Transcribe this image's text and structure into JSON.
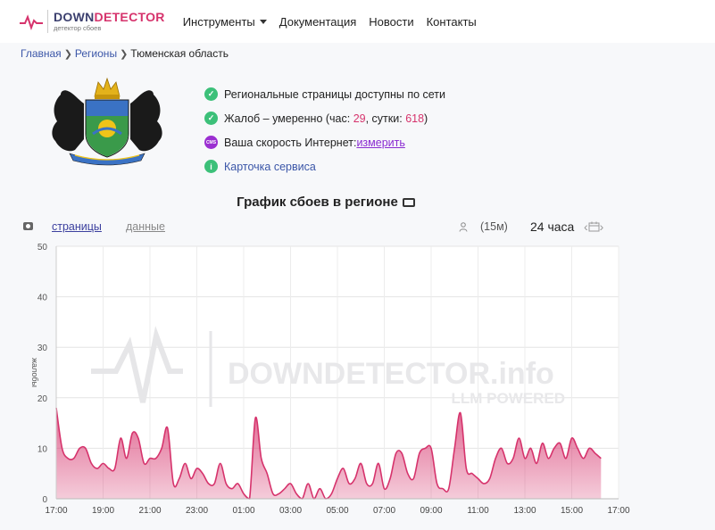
{
  "brand": {
    "name_dark": "DOWN",
    "name_mid": "DETECTO",
    "name_end": "R",
    "subtitle": "детектор сбоев"
  },
  "nav": {
    "tools": "Инструменты",
    "docs": "Документация",
    "news": "Новости",
    "contacts": "Контакты"
  },
  "breadcrumb": {
    "home": "Главная",
    "regions": "Регионы",
    "current": "Тюменская область"
  },
  "status": {
    "line1": "Региональные страницы доступны по сети",
    "line2_prefix": "Жалоб – умеренно (час: ",
    "hour_count": "29",
    "line2_mid": ", сутки: ",
    "day_count": "618",
    "line2_suffix": ")",
    "line3_prefix": "Ваша скорость Интернет: ",
    "line3_link": "измерить",
    "line4": "Карточка сервиса",
    "badge_text": "CMS"
  },
  "chart_section": {
    "title": "График сбоев в регионе",
    "tab_pages": "страницы",
    "tab_data": "данные",
    "interval": "(15м)",
    "period": "24 часа"
  },
  "chart_data": {
    "type": "area",
    "ylabel": "жалобы",
    "ylim": [
      0,
      50
    ],
    "yticks": [
      0,
      10,
      20,
      30,
      40,
      50
    ],
    "xticks": [
      "17:00",
      "19:00",
      "21:00",
      "23:00",
      "01:00",
      "03:00",
      "05:00",
      "07:00",
      "09:00",
      "11:00",
      "13:00",
      "15:00",
      "17:00"
    ],
    "watermark": "DOWNDETECTOR.info",
    "watermark_sub": "LLM POWERED",
    "color": "#d6336c",
    "x_hours": [
      0,
      0.25,
      0.5,
      0.75,
      1,
      1.25,
      1.5,
      1.75,
      2,
      2.25,
      2.5,
      2.75,
      3,
      3.25,
      3.5,
      3.75,
      4,
      4.25,
      4.5,
      4.75,
      5,
      5.25,
      5.5,
      5.75,
      6,
      6.25,
      6.5,
      6.75,
      7,
      7.25,
      7.5,
      7.75,
      8,
      8.25,
      8.5,
      8.75,
      9,
      9.25,
      9.5,
      9.75,
      10,
      10.25,
      10.5,
      10.75,
      11,
      11.25,
      11.5,
      11.75,
      12,
      12.25,
      12.5,
      12.75,
      13,
      13.25,
      13.5,
      13.75,
      14,
      14.25,
      14.5,
      14.75,
      15,
      15.25,
      15.5,
      15.75,
      16,
      16.25,
      16.5,
      16.75,
      17,
      17.25,
      17.5,
      17.75,
      18,
      18.25,
      18.5,
      18.75,
      19,
      19.25,
      19.5,
      19.75,
      20,
      20.25,
      20.5,
      20.75,
      21,
      21.25,
      21.5,
      21.75,
      22,
      22.25,
      22.5,
      22.75,
      23,
      23.25
    ],
    "values": [
      18,
      10,
      8,
      8,
      10,
      10,
      7,
      6,
      7,
      6,
      6,
      12,
      8,
      13,
      12,
      7,
      8,
      8,
      10,
      14,
      3,
      4,
      7,
      4,
      6,
      5,
      3,
      3,
      7,
      3,
      2,
      3,
      1,
      0,
      16,
      8,
      5,
      1,
      1,
      2,
      3,
      1,
      0,
      3,
      0,
      2,
      0,
      1,
      4,
      6,
      3,
      4,
      7,
      3,
      3,
      7,
      2,
      4,
      9,
      9,
      5,
      4,
      9,
      10,
      10,
      3,
      2,
      2,
      10,
      17,
      6,
      5,
      4,
      3,
      4,
      8,
      10,
      7,
      8,
      12,
      8,
      10,
      7,
      11,
      8,
      10,
      11,
      8,
      12,
      10,
      8,
      10,
      9,
      8
    ]
  }
}
